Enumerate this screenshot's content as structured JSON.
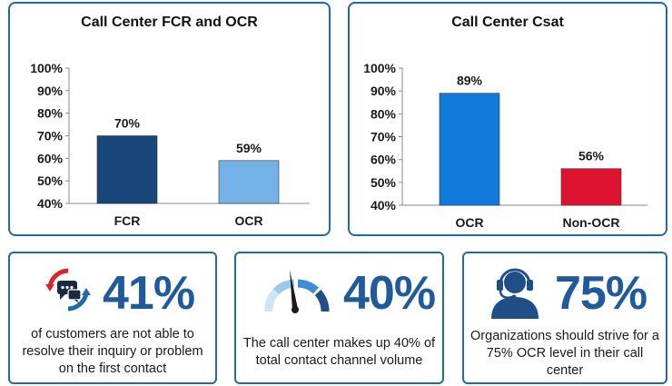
{
  "chart_data": [
    {
      "type": "bar",
      "title": "Call Center FCR and OCR",
      "categories": [
        "FCR",
        "OCR"
      ],
      "values": [
        70,
        59
      ],
      "value_labels": [
        "70%",
        "59%"
      ],
      "colors": [
        "#17477a",
        "#73b1e6"
      ],
      "ylim": [
        40,
        100
      ],
      "yticks": [
        "40%",
        "50%",
        "60%",
        "70%",
        "80%",
        "90%",
        "100%"
      ],
      "grid": false,
      "legend": "none"
    },
    {
      "type": "bar",
      "title": "Call Center Csat",
      "categories": [
        "OCR",
        "Non-OCR"
      ],
      "values": [
        89,
        56
      ],
      "value_labels": [
        "89%",
        "56%"
      ],
      "colors": [
        "#0f7ad9",
        "#dd1130"
      ],
      "ylim": [
        40,
        100
      ],
      "yticks": [
        "40%",
        "50%",
        "60%",
        "70%",
        "80%",
        "90%",
        "100%"
      ],
      "grid": false,
      "legend": "none"
    }
  ],
  "stats": [
    {
      "value": "41%",
      "icon": "chat-refresh-icon",
      "text": "of customers are not able to resolve their inquiry or problem on the first contact"
    },
    {
      "value": "40%",
      "icon": "gauge-icon",
      "text": "The call center makes up 40% of total contact channel volume"
    },
    {
      "value": "75%",
      "icon": "headset-agent-icon",
      "text": "Organizations should strive for a 75% OCR level in their call center"
    }
  ],
  "colors": {
    "border": "#1f6aa8",
    "stat_value": "#1f5a9a",
    "icon_red": "#d9232e",
    "icon_blue": "#1f6aa8"
  }
}
